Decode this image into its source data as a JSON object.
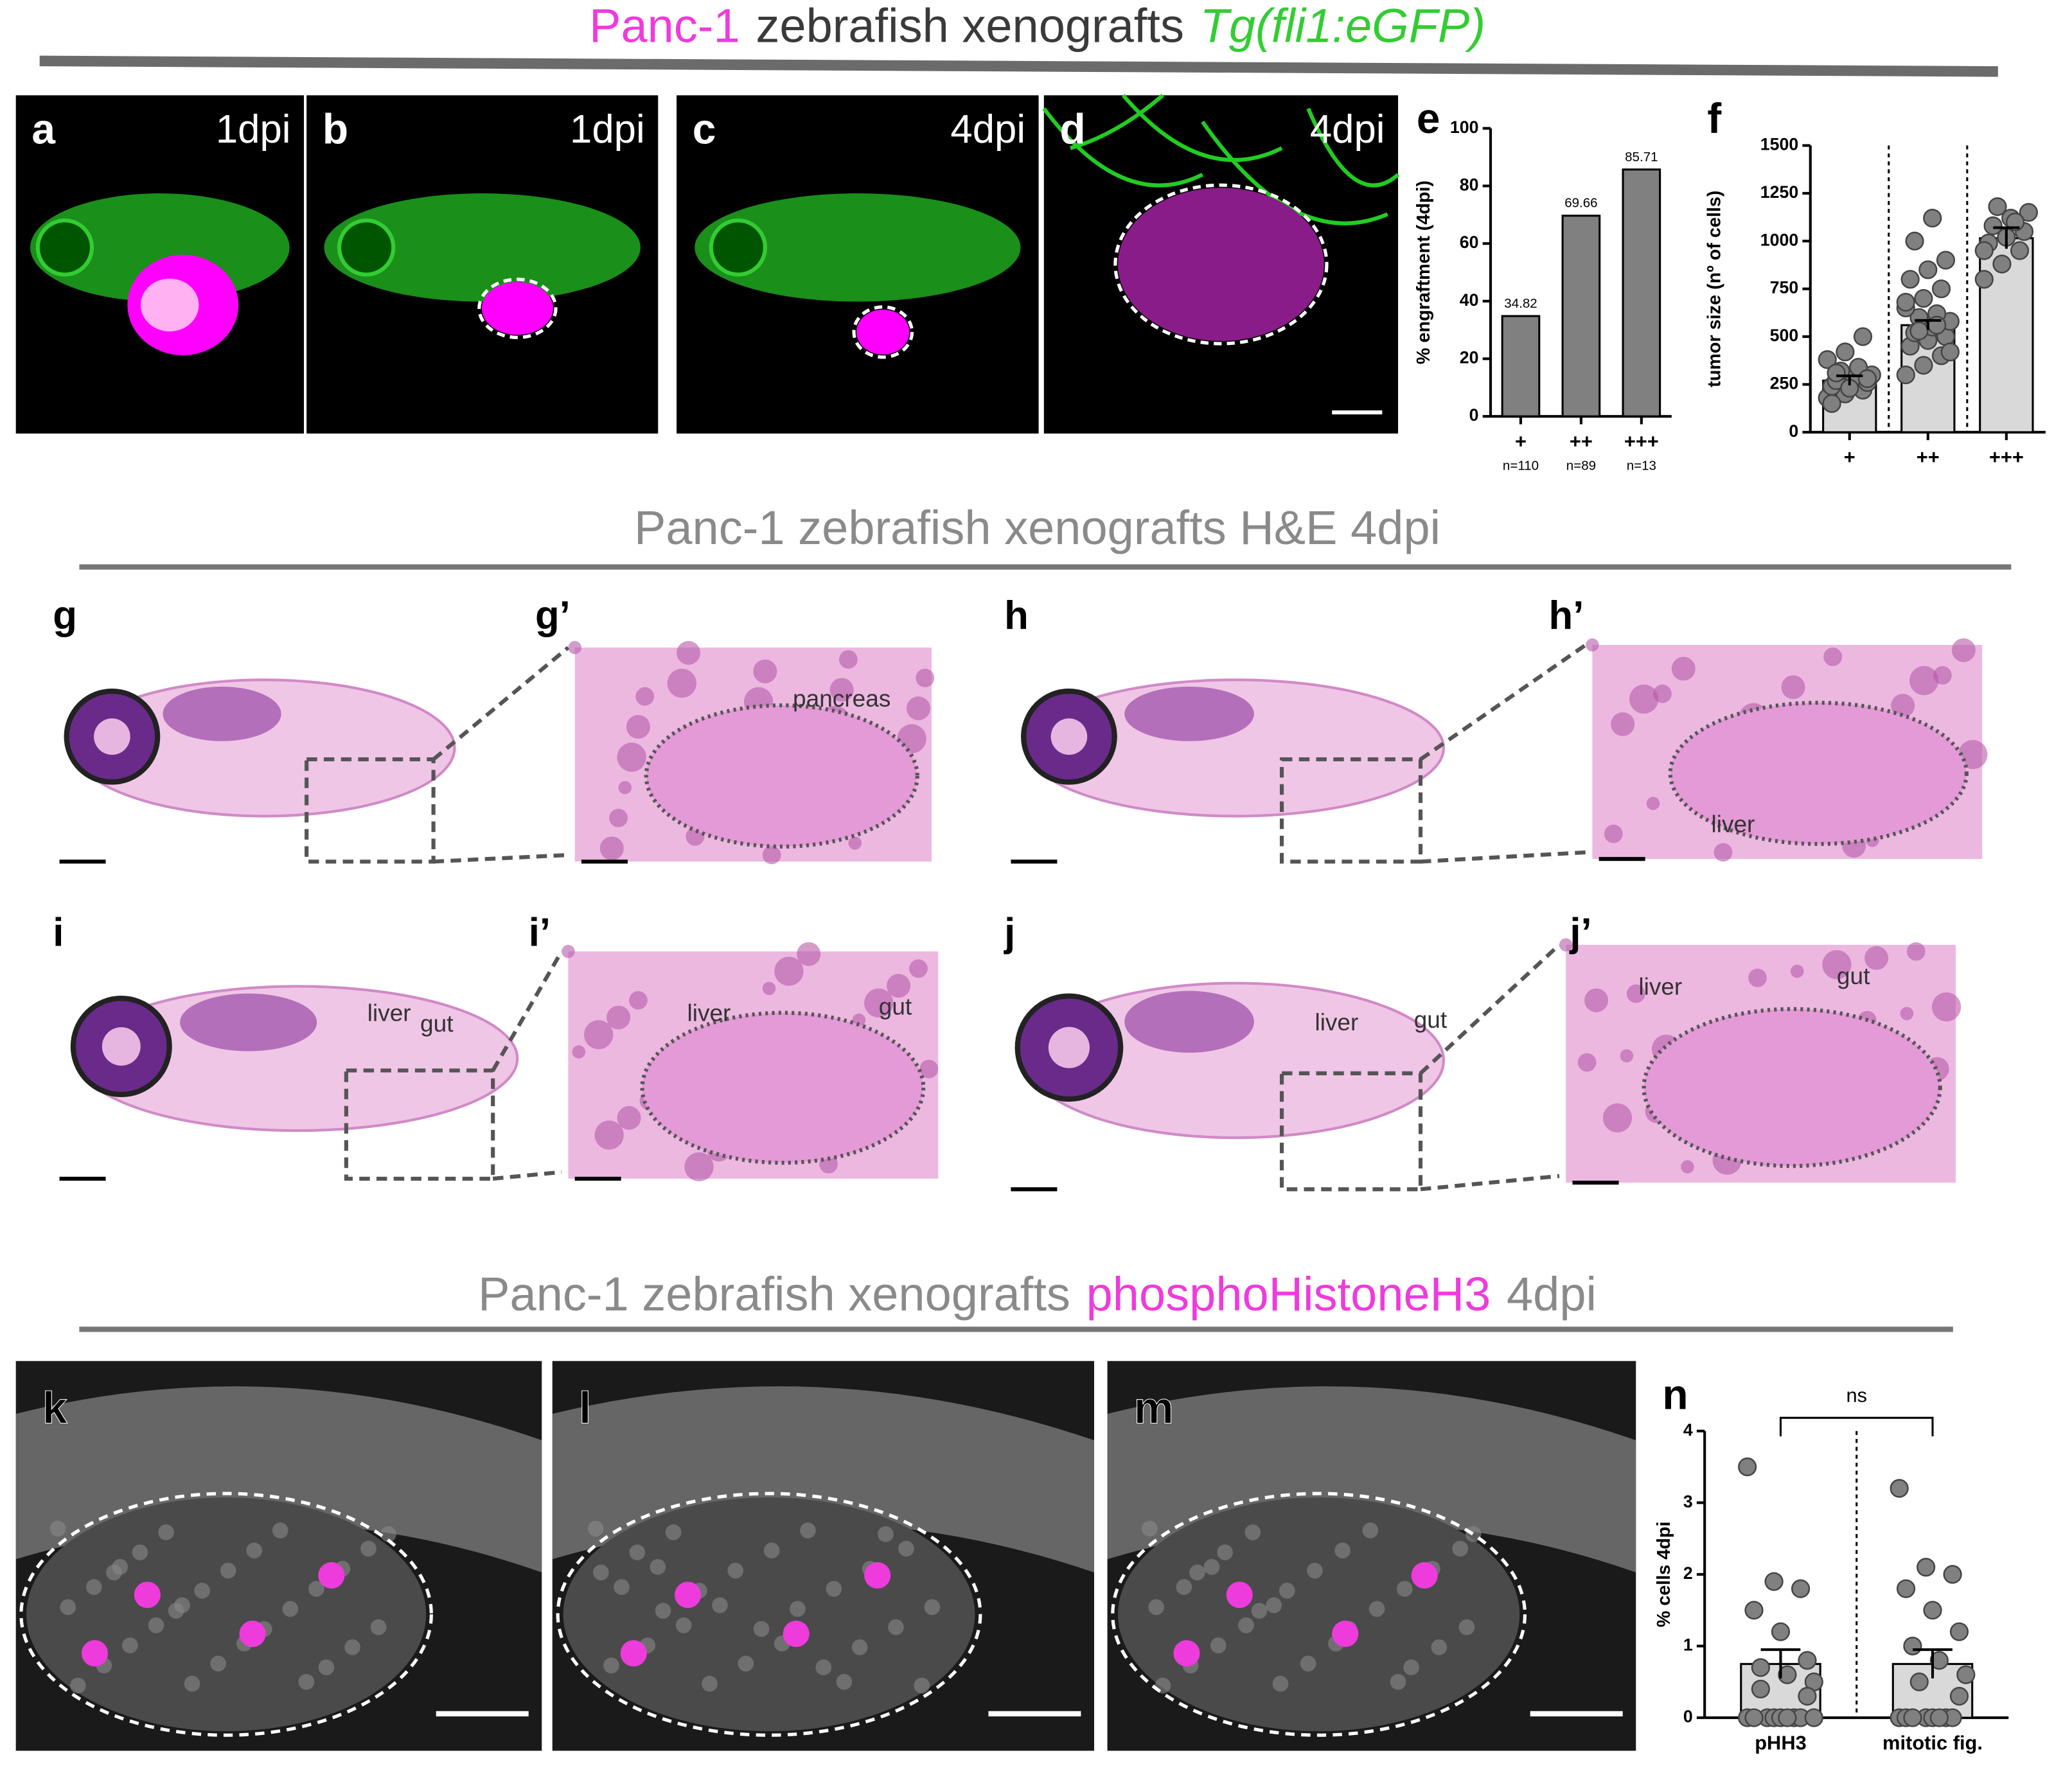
{
  "sections": [
    {
      "title": [
        {
          "text": "Panc-1",
          "color": "#ee3bdc"
        },
        {
          "text": "zebrafish xenografts",
          "color": "#3a3a3a"
        },
        {
          "text": "Tg(fli1:eGFP)",
          "color": "#33cc33",
          "style": "italic"
        }
      ]
    },
    {
      "title": [
        {
          "text": "Panc-1 zebrafish xenografts H&E 4dpi",
          "color": "#8a8a8a"
        }
      ]
    },
    {
      "title": [
        {
          "text": "Panc-1 zebrafish xenografts",
          "color": "#8a8a8a"
        },
        {
          "text": "phosphoHistoneH3",
          "color": "#ee3bdc"
        },
        {
          "text": "4dpi",
          "color": "#8a8a8a"
        }
      ]
    }
  ],
  "fluorescence_panels": [
    {
      "label": "a",
      "time": "1dpi"
    },
    {
      "label": "b",
      "time": "1dpi"
    },
    {
      "label": "c",
      "time": "4dpi"
    },
    {
      "label": "d",
      "time": "4dpi"
    }
  ],
  "histology_panels": [
    {
      "label": "g",
      "tags": []
    },
    {
      "label": "g’",
      "tags": [
        "pancreas"
      ]
    },
    {
      "label": "h",
      "tags": []
    },
    {
      "label": "h’",
      "tags": [
        "liver"
      ]
    },
    {
      "label": "i",
      "tags": [
        "liver",
        "gut"
      ]
    },
    {
      "label": "i’",
      "tags": [
        "liver",
        "gut"
      ]
    },
    {
      "label": "j",
      "tags": [
        "liver",
        "gut"
      ]
    },
    {
      "label": "j’",
      "tags": [
        "liver",
        "gut"
      ]
    }
  ],
  "confocal_panels": [
    {
      "label": "k"
    },
    {
      "label": "l"
    },
    {
      "label": "m"
    }
  ],
  "chart_data": [
    {
      "type": "bar",
      "panel": "e",
      "ylabel": "% engraftment (4dpi)",
      "categories": [
        "+",
        "++",
        "+++"
      ],
      "sample_sizes": [
        "n=110",
        "n=89",
        "n=13"
      ],
      "values": [
        34.82,
        69.66,
        85.71
      ],
      "data_labels": true,
      "color": "#808080",
      "ylim": [
        0,
        100
      ],
      "yticks": [
        0,
        20,
        40,
        60,
        80,
        100
      ]
    },
    {
      "type": "dotbar",
      "panel": "f",
      "ylabel": "tumor size (nº of cells)",
      "categories": [
        "+",
        "++",
        "+++"
      ],
      "values": [
        270,
        560,
        1015
      ],
      "errors": [
        25,
        25,
        55
      ],
      "color": "#d9d9d9",
      "point_color": "#808080",
      "points": [
        [
          180,
          200,
          220,
          240,
          250,
          260,
          270,
          290,
          300,
          320,
          340,
          380,
          420,
          500,
          150,
          230,
          280,
          310
        ],
        [
          300,
          350,
          400,
          450,
          480,
          500,
          520,
          550,
          580,
          600,
          620,
          650,
          700,
          750,
          800,
          850,
          900,
          1000,
          1120,
          420,
          530,
          560,
          680
        ],
        [
          800,
          880,
          950,
          990,
          1020,
          1050,
          1080,
          1120,
          1150,
          1180,
          1100,
          950
        ]
      ],
      "separators": true,
      "ylim": [
        0,
        1500
      ],
      "yticks": [
        0,
        250,
        500,
        750,
        1000,
        1250,
        1500
      ]
    },
    {
      "type": "dotbar",
      "panel": "n",
      "ylabel": "% cells 4dpi",
      "categories": [
        "pHH3",
        "mitotic fig."
      ],
      "values": [
        0.75,
        0.75
      ],
      "errors": [
        0.2,
        0.2
      ],
      "color": "#d9d9d9",
      "point_color": "#808080",
      "points": [
        [
          3.5,
          1.9,
          1.8,
          1.5,
          1.2,
          0.8,
          0.7,
          0.6,
          0.5,
          0,
          0,
          0,
          0,
          0,
          0,
          0,
          0.3,
          0.4,
          0,
          0
        ],
        [
          3.2,
          2.1,
          2.0,
          1.8,
          1.5,
          1.2,
          1.0,
          0.8,
          0.6,
          0.5,
          0,
          0,
          0,
          0,
          0,
          0,
          0.3,
          0,
          0
        ]
      ],
      "separators": true,
      "annotation": "ns",
      "ylim": [
        0,
        4
      ],
      "yticks": [
        0,
        1,
        2,
        3,
        4
      ]
    }
  ]
}
